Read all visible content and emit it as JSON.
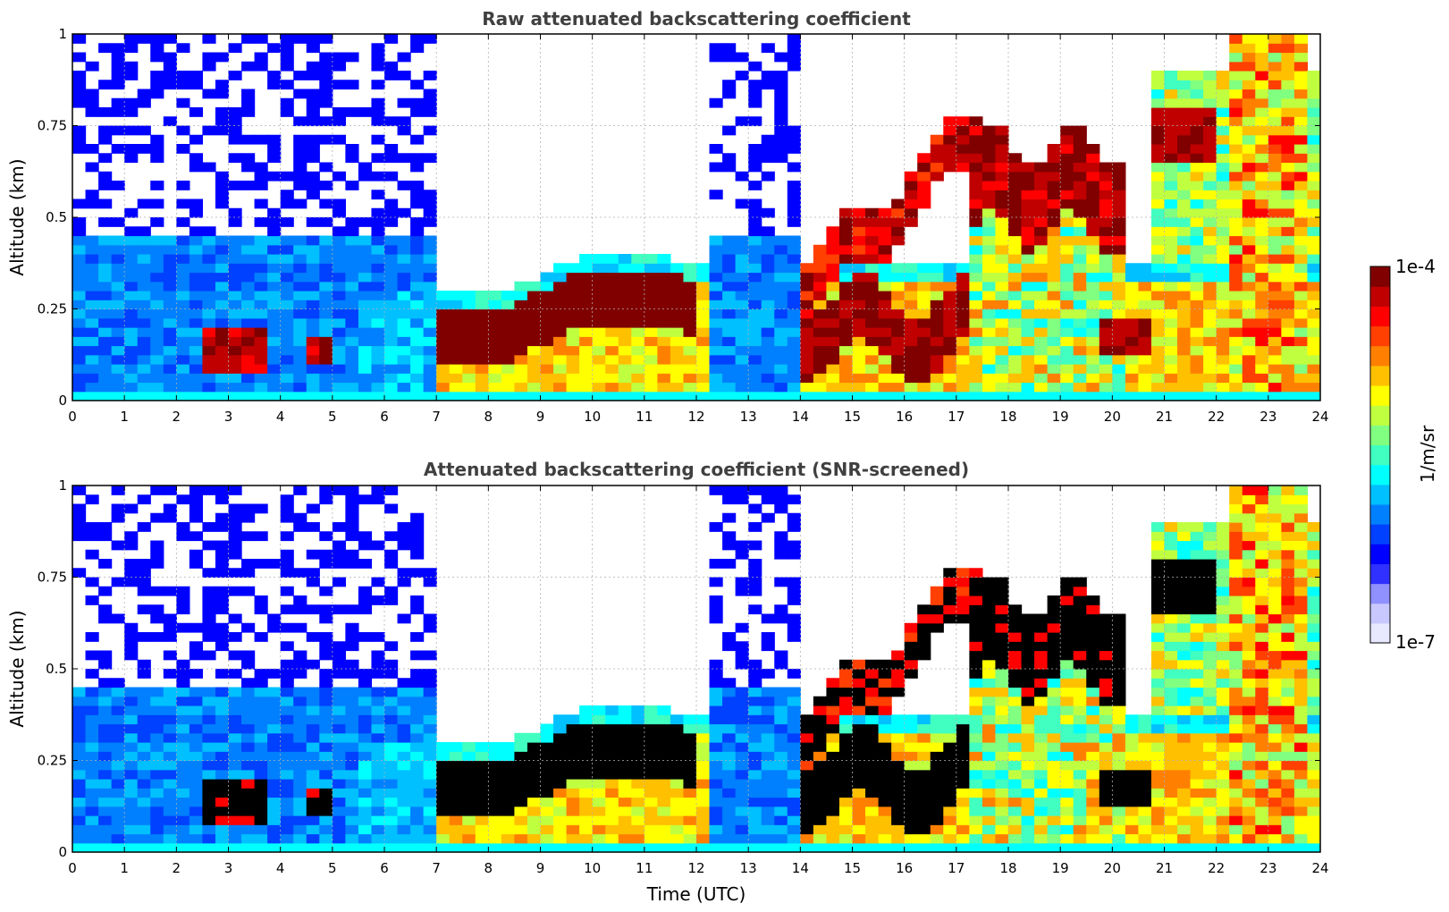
{
  "colors": {
    "scale": [
      "#e8e8ff",
      "#c8c8ff",
      "#9090ff",
      "#3030ff",
      "#0000ff",
      "#0040ff",
      "#0080ff",
      "#00c0ff",
      "#00ffff",
      "#40ffc0",
      "#80ff80",
      "#c0ff40",
      "#ffff00",
      "#ffc000",
      "#ff8000",
      "#ff4000",
      "#ff0000",
      "#c00000",
      "#800000"
    ],
    "saturated": "#000000"
  },
  "chart_data": [
    {
      "type": "heatmap",
      "title": "Raw attenuated backscattering coefficient",
      "xlabel": "",
      "ylabel": "Altitude (km)",
      "xlim": [
        0,
        24
      ],
      "ylim": [
        0,
        1
      ],
      "xticks": [
        "0",
        "1",
        "2",
        "3",
        "4",
        "5",
        "6",
        "7",
        "8",
        "9",
        "10",
        "11",
        "12",
        "13",
        "14",
        "15",
        "16",
        "17",
        "18",
        "19",
        "20",
        "21",
        "22",
        "23",
        "24"
      ],
      "yticks": [
        "0",
        "0.25",
        "0.5",
        "0.75",
        "1"
      ],
      "grid": true,
      "saturation_color": "dark-red"
    },
    {
      "type": "heatmap",
      "title": "Attenuated backscattering coefficient (SNR-screened)",
      "xlabel": "Time (UTC)",
      "ylabel": "Altitude (km)",
      "xlim": [
        0,
        24
      ],
      "ylim": [
        0,
        1
      ],
      "xticks": [
        "0",
        "1",
        "2",
        "3",
        "4",
        "5",
        "6",
        "7",
        "8",
        "9",
        "10",
        "11",
        "12",
        "13",
        "14",
        "15",
        "16",
        "17",
        "18",
        "19",
        "20",
        "21",
        "22",
        "23",
        "24"
      ],
      "yticks": [
        "0",
        "0.25",
        "0.5",
        "0.75",
        "1"
      ],
      "grid": true,
      "saturation_color": "black"
    }
  ],
  "colorbar": {
    "label": "1/m/sr",
    "max_label": "1e-4",
    "min_label": "1e-7"
  }
}
